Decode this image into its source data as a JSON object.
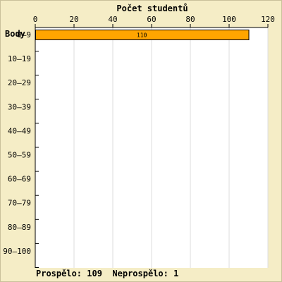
{
  "chart_data": {
    "type": "bar",
    "orientation": "horizontal",
    "title": "Počet studentů",
    "ylabel": "Body",
    "xlabel": "",
    "categories": [
      "0–9",
      "10–19",
      "20–29",
      "30–39",
      "40–49",
      "50–59",
      "60–69",
      "70–79",
      "80–89",
      "90–100"
    ],
    "values": [
      110,
      0,
      0,
      0,
      0,
      0,
      0,
      0,
      0,
      0
    ],
    "data_labels": [
      "110",
      "",
      "",
      "",
      "",
      "",
      "",
      "",
      "",
      ""
    ],
    "xlim": [
      0,
      120
    ],
    "xticks": [
      0,
      20,
      40,
      60,
      80,
      100,
      120
    ],
    "x_axis_position": "top",
    "grid": true,
    "bar_color": "#ffa500"
  },
  "footer": {
    "passed_label": "Prospělo:",
    "passed_value": "109",
    "failed_label": "Neprospělo:",
    "failed_value": "1"
  },
  "colors": {
    "background": "#f5edc6",
    "plot_background": "#ffffff",
    "grid": "#dddddd"
  }
}
